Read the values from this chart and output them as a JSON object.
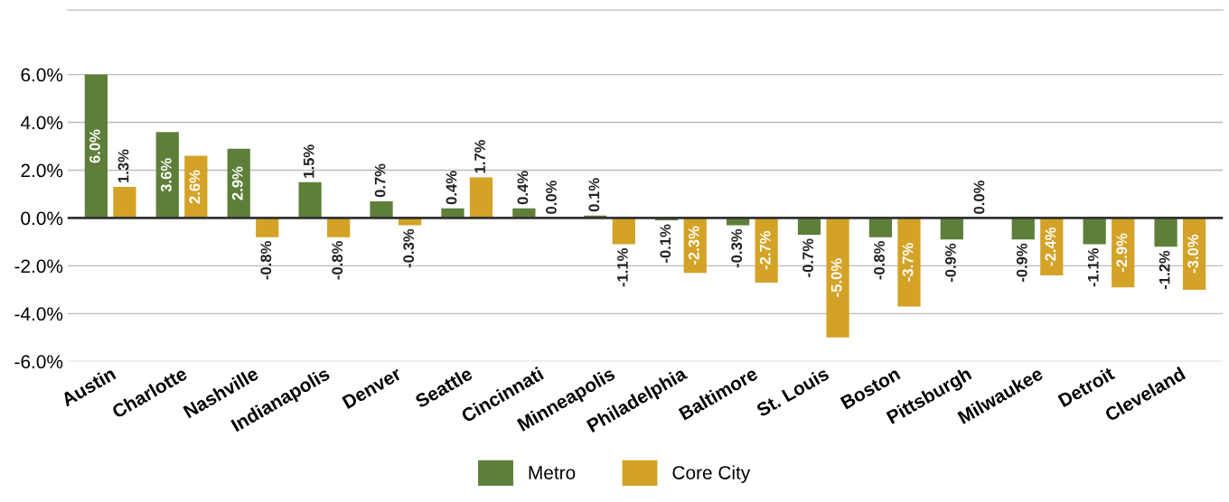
{
  "chart_data": {
    "type": "bar",
    "categories": [
      "Austin",
      "Charlotte",
      "Nashville",
      "Indianapolis",
      "Denver",
      "Seattle",
      "Cincinnati",
      "Minneapolis",
      "Philadelphia",
      "Baltimore",
      "St. Louis",
      "Boston",
      "Pittsburgh",
      "Milwaukee",
      "Detroit",
      "Cleveland"
    ],
    "series": [
      {
        "name": "Metro",
        "color": "#5e7f3a",
        "values": [
          6.0,
          3.6,
          2.9,
          1.5,
          0.7,
          0.4,
          0.4,
          0.1,
          -0.1,
          -0.3,
          -0.7,
          -0.8,
          -0.9,
          -0.9,
          -1.1,
          -1.2
        ],
        "value_labels": [
          "6.0%",
          "3.6%",
          "2.9%",
          "1.5%",
          "0.7%",
          "0.4%",
          "0.4%",
          "0.1%",
          "-0.1%",
          "-0.3%",
          "-0.7%",
          "-0.8%",
          "-0.9%",
          "-0.9%",
          "-1.1%",
          "-1.2%"
        ]
      },
      {
        "name": "Core City",
        "color": "#d4a226",
        "values": [
          1.3,
          2.6,
          -0.8,
          -0.8,
          -0.3,
          1.7,
          0.0,
          -1.1,
          -2.3,
          -2.7,
          -5.0,
          -3.7,
          0.0,
          -2.4,
          -2.9,
          -3.0
        ],
        "value_labels": [
          "1.3%",
          "2.6%",
          "-0.8%",
          "-0.8%",
          "-0.3%",
          "1.7%",
          "0.0%",
          "-1.1%",
          "-2.3%",
          "-2.7%",
          "-5.0%",
          "-3.7%",
          "0.0%",
          "-2.4%",
          "-2.9%",
          "-3.0%"
        ]
      }
    ],
    "ylim": [
      -6,
      8.7
    ],
    "yticks": [
      {
        "value": 6,
        "label": "6.0%"
      },
      {
        "value": 4,
        "label": "4.0%"
      },
      {
        "value": 2,
        "label": "2.0%"
      },
      {
        "value": 0,
        "label": "0.0%"
      },
      {
        "value": -2,
        "label": "-2.0%"
      },
      {
        "value": -4,
        "label": "-4.0%"
      },
      {
        "value": -6,
        "label": "-6.0%"
      }
    ],
    "grid": "y",
    "legend": "bottom"
  }
}
